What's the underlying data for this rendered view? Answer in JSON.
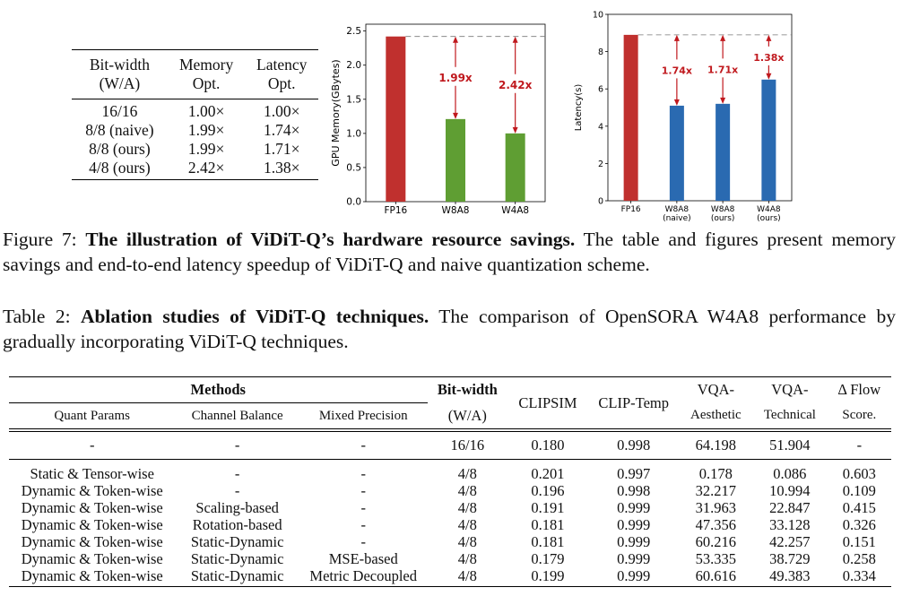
{
  "fig7_table": {
    "headers": [
      [
        "Bit-width",
        "(W/A)"
      ],
      [
        "Memory",
        "Opt."
      ],
      [
        "Latency",
        "Opt."
      ]
    ],
    "rows": [
      [
        "16/16",
        "1.00×",
        "1.00×"
      ],
      [
        "8/8 (naive)",
        "1.99×",
        "1.74×"
      ],
      [
        "8/8 (ours)",
        "1.99×",
        "1.71×"
      ],
      [
        "4/8 (ours)",
        "2.42×",
        "1.38×"
      ]
    ]
  },
  "chart_data": [
    {
      "type": "bar",
      "ylabel": "GPU Memory(GBytes)",
      "categories": [
        "FP16",
        "W8A8",
        "W4A8"
      ],
      "values": [
        2.42,
        1.21,
        1.0
      ],
      "colors": [
        "#c0302e",
        "#5f9e33",
        "#5f9e33"
      ],
      "yticks": [
        "0.0",
        "0.5",
        "1.0",
        "1.5",
        "2.0",
        "2.5"
      ],
      "ylim": [
        0,
        2.6
      ],
      "annotations": [
        {
          "label": "1.99x",
          "from": 1.21,
          "to": 2.42,
          "category": "W8A8"
        },
        {
          "label": "2.42x",
          "from": 1.0,
          "to": 2.42,
          "category": "W4A8"
        }
      ],
      "annotation_color": "#c0191e"
    },
    {
      "type": "bar",
      "ylabel": "Latency(s)",
      "categories": [
        [
          "FP16"
        ],
        [
          "W8A8",
          "(naive)"
        ],
        [
          "W8A8",
          "(ours)"
        ],
        [
          "W4A8",
          "(ours)"
        ]
      ],
      "values": [
        8.9,
        5.1,
        5.2,
        6.5
      ],
      "colors": [
        "#c0302e",
        "#2a6ab1",
        "#2a6ab1",
        "#2a6ab1"
      ],
      "yticks": [
        "0",
        "2",
        "4",
        "6",
        "8",
        "10"
      ],
      "ylim": [
        0,
        10
      ],
      "annotations": [
        {
          "label": "1.74x",
          "from": 5.1,
          "to": 8.9,
          "category": 1
        },
        {
          "label": "1.71x",
          "from": 5.2,
          "to": 8.9,
          "category": 2
        },
        {
          "label": "1.38x",
          "from": 6.5,
          "to": 8.9,
          "category": 3
        }
      ],
      "annotation_color": "#c0191e"
    }
  ],
  "fig7_caption": {
    "prefix": "Figure 7: ",
    "bold": "The illustration of ViDiT-Q’s hardware resource savings.",
    "text": " The table and figures present memory savings and end-to-end latency speedup of ViDiT-Q and naive quantization scheme."
  },
  "table2_caption": {
    "prefix": "Table 2: ",
    "bold": "Ablation studies of ViDiT-Q techniques.",
    "text": " The comparison of OpenSORA W4A8 performance by gradually incorporating ViDiT-Q techniques."
  },
  "ablation": {
    "methods_header": "Methods",
    "sub_headers": [
      "Quant Params",
      "Channel Balance",
      "Mixed Precision"
    ],
    "bitwidth_header": [
      "Bit-width",
      "(W/A)"
    ],
    "metric_headers": [
      [
        "CLIPSIM",
        ""
      ],
      [
        "CLIP-Temp",
        ""
      ],
      [
        "VQA-",
        "Aesthetic"
      ],
      [
        "VQA-",
        "Technical"
      ],
      [
        "Δ Flow",
        "Score."
      ]
    ],
    "baseline": [
      "-",
      "-",
      "-",
      "16/16",
      "0.180",
      "0.998",
      "64.198",
      "51.904",
      "-"
    ],
    "rows": [
      [
        "Static & Tensor-wise",
        "-",
        "-",
        "4/8",
        "0.201",
        "0.997",
        "0.178",
        "0.086",
        "0.603"
      ],
      [
        "Dynamic & Token-wise",
        "-",
        "-",
        "4/8",
        "0.196",
        "0.998",
        "32.217",
        "10.994",
        "0.109"
      ],
      [
        "Dynamic & Token-wise",
        "Scaling-based",
        "-",
        "4/8",
        "0.191",
        "0.999",
        "31.963",
        "22.847",
        "0.415"
      ],
      [
        "Dynamic & Token-wise",
        "Rotation-based",
        "-",
        "4/8",
        "0.181",
        "0.999",
        "47.356",
        "33.128",
        "0.326"
      ],
      [
        "Dynamic & Token-wise",
        "Static-Dynamic",
        "-",
        "4/8",
        "0.181",
        "0.999",
        "60.216",
        "42.257",
        "0.151"
      ],
      [
        "Dynamic & Token-wise",
        "Static-Dynamic",
        "MSE-based",
        "4/8",
        "0.179",
        "0.999",
        "53.335",
        "38.729",
        "0.258"
      ],
      [
        "Dynamic & Token-wise",
        "Static-Dynamic",
        "Metric Decoupled",
        "4/8",
        "0.199",
        "0.999",
        "60.616",
        "49.383",
        "0.334"
      ]
    ]
  }
}
